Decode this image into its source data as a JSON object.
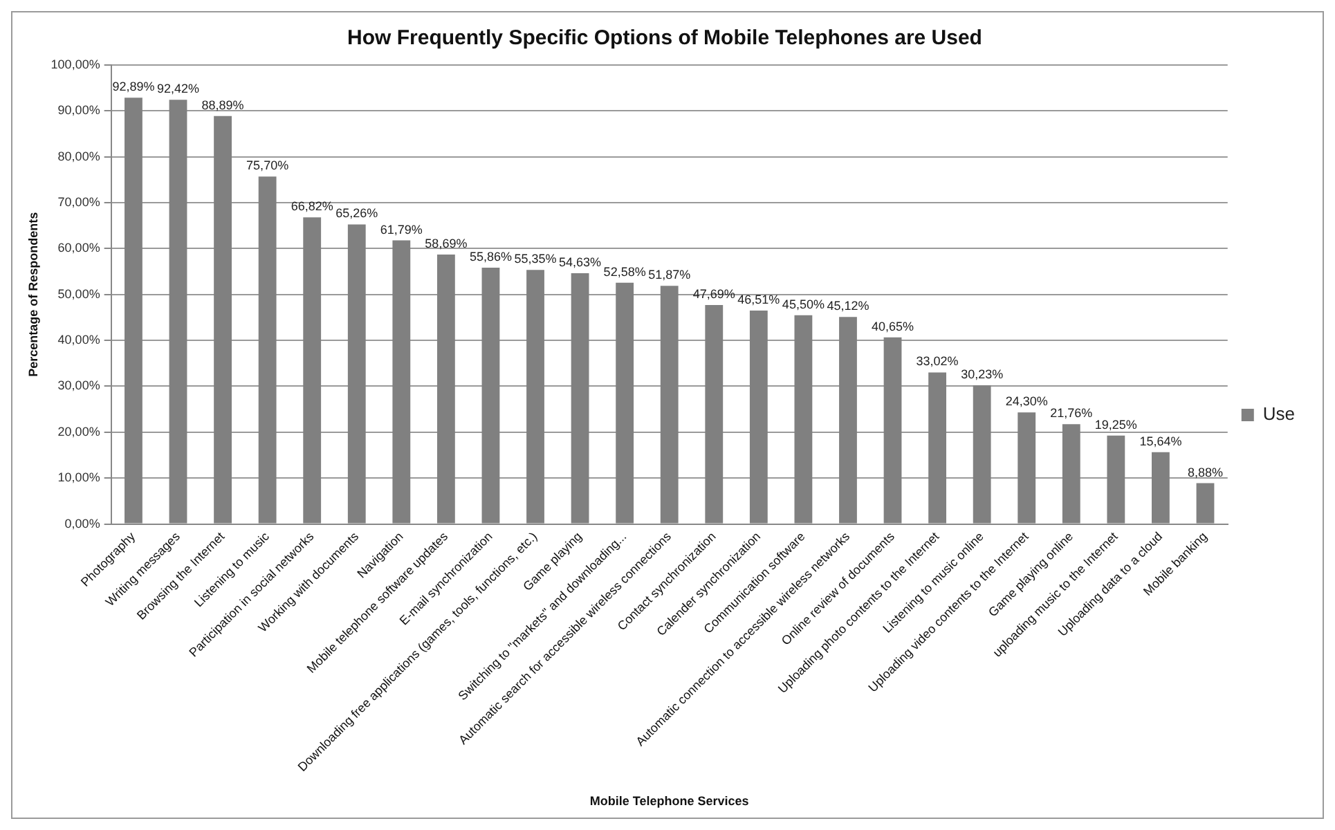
{
  "chart_data": {
    "type": "bar",
    "title": "How Frequently Specific Options of Mobile Telephones are Used",
    "xlabel": "Mobile Telephone Services",
    "ylabel": "Percentage of Respondents",
    "categories": [
      "Photography",
      "Writing messages",
      "Browsing the Internet",
      "Listening to music",
      "Participation in social networks",
      "Working with documents",
      "Navigation",
      "Mobile telephone software updates",
      "E-mail synchronization",
      "Downloading free applications (games, tools, functions, etc.)",
      "Game playing",
      "Switching to \"markets\" and downloading...",
      "Automatic search for accessible wireless connections",
      "Contact synchronization",
      "Calender synchronization",
      "Communication software",
      "Automatic connection to accessible wireless networks",
      "Online review of documents",
      "Uploading photo contents to the Internet",
      "Listening to music online",
      "Uploading video contents to the Internet",
      "Game playing online",
      "uploading music to the Internet",
      "Uploading data to a cloud",
      "Mobile banking"
    ],
    "series": [
      {
        "name": "Use",
        "color": "#808080",
        "values": [
          92.89,
          92.42,
          88.89,
          75.7,
          66.82,
          65.26,
          61.79,
          58.69,
          55.86,
          55.35,
          54.63,
          52.58,
          51.87,
          47.69,
          46.51,
          45.5,
          45.12,
          40.65,
          33.02,
          30.23,
          24.3,
          21.76,
          19.25,
          15.64,
          8.88
        ],
        "value_labels": [
          "92,89%",
          "92,42%",
          "88,89%",
          "75,70%",
          "66,82%",
          "65,26%",
          "61,79%",
          "58,69%",
          "55,86%",
          "55,35%",
          "54,63%",
          "52,58%",
          "51,87%",
          "47,69%",
          "46,51%",
          "45,50%",
          "45,12%",
          "40,65%",
          "33,02%",
          "30,23%",
          "24,30%",
          "21,76%",
          "19,25%",
          "15,64%",
          "8,88%"
        ]
      }
    ],
    "ylim": [
      0,
      100
    ],
    "yticks": [
      {
        "value": 0,
        "label": "0,00%"
      },
      {
        "value": 10,
        "label": "10,00%"
      },
      {
        "value": 20,
        "label": "20,00%"
      },
      {
        "value": 30,
        "label": "30,00%"
      },
      {
        "value": 40,
        "label": "40,00%"
      },
      {
        "value": 50,
        "label": "50,00%"
      },
      {
        "value": 60,
        "label": "60,00%"
      },
      {
        "value": 70,
        "label": "70,00%"
      },
      {
        "value": 80,
        "label": "80,00%"
      },
      {
        "value": 90,
        "label": "90,00%"
      },
      {
        "value": 100,
        "label": "100,00%"
      }
    ],
    "grid": "y",
    "legend": "right"
  }
}
